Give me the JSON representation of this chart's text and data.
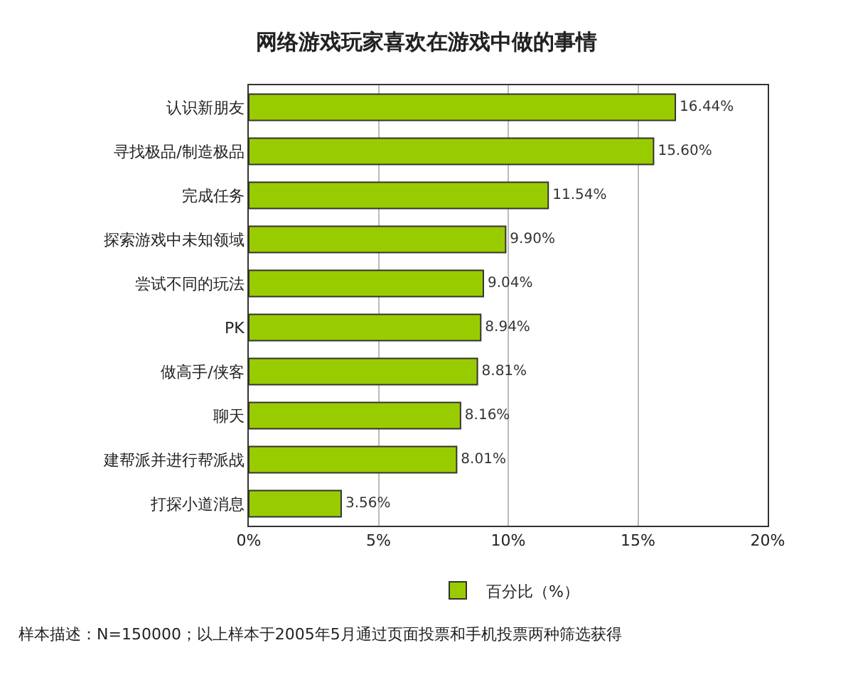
{
  "chart_data": {
    "type": "bar",
    "orientation": "horizontal",
    "title": "网络游戏玩家喜欢在游戏中做的事情",
    "categories": [
      "认识新朋友",
      "寻找极品/制造极品",
      "完成任务",
      "探索游戏中未知领域",
      "尝试不同的玩法",
      "PK",
      "做高手/侠客",
      "聊天",
      "建帮派并进行帮派战",
      "打探小道消息"
    ],
    "series": [
      {
        "name": "百分比（%）",
        "color": "#99cc00",
        "values": [
          16.44,
          15.6,
          11.54,
          9.9,
          9.04,
          8.94,
          8.81,
          8.16,
          8.01,
          3.56
        ],
        "value_labels": [
          "16.44%",
          "15.60%",
          "11.54%",
          "9.90%",
          "9.04%",
          "8.94%",
          "8.81%",
          "8.16%",
          "8.01%",
          "3.56%"
        ]
      }
    ],
    "xlim": [
      0,
      20
    ],
    "xticks": [
      {
        "value": 0,
        "label": "0%"
      },
      {
        "value": 5,
        "label": "5%"
      },
      {
        "value": 10,
        "label": "10%"
      },
      {
        "value": 15,
        "label": "15%"
      },
      {
        "value": 20,
        "label": "20%"
      }
    ],
    "grid": "x",
    "legend": "bottom",
    "annotations": [
      "样本描述：N=150000；以上样本于2005年5月通过页面投票和手机投票两种筛选获得"
    ]
  }
}
